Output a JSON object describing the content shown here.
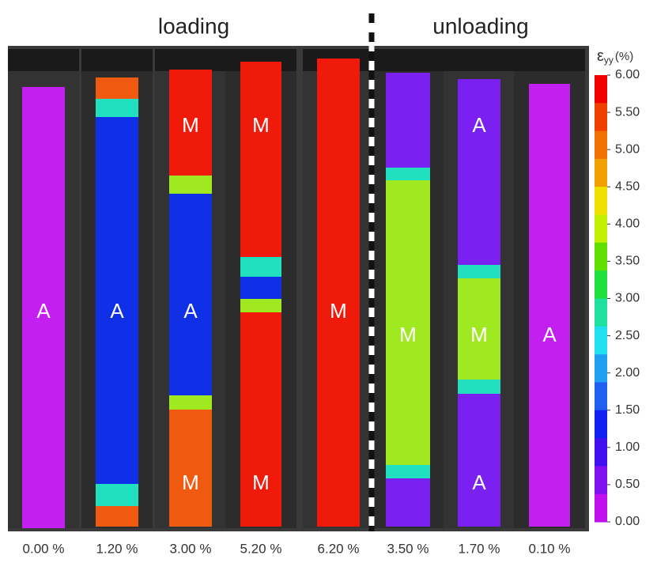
{
  "header": {
    "left": "loading",
    "right": "unloading"
  },
  "specimens": [
    {
      "label": "0.00 %",
      "phases": [
        "A"
      ]
    },
    {
      "label": "1.20 %",
      "phases": [
        "A"
      ]
    },
    {
      "label": "3.00 %",
      "phases": [
        "M",
        "A",
        "M"
      ]
    },
    {
      "label": "5.20 %",
      "phases": [
        "M",
        "M"
      ]
    },
    {
      "label": "6.20 %",
      "phases": [
        "M"
      ]
    },
    {
      "label": "3.50 %",
      "phases": [
        "M"
      ]
    },
    {
      "label": "1.70 %",
      "phases": [
        "A",
        "M",
        "A"
      ]
    },
    {
      "label": "0.10 %",
      "phases": [
        "A"
      ]
    }
  ],
  "colorbar": {
    "symbol": "ε",
    "subscript": "yy",
    "unit": "(%)",
    "ticks": [
      "6.00",
      "5.50",
      "5.00",
      "4.50",
      "4.00",
      "3.50",
      "3.00",
      "2.50",
      "2.00",
      "1.50",
      "1.00",
      "0.50",
      "0.00"
    ]
  }
}
